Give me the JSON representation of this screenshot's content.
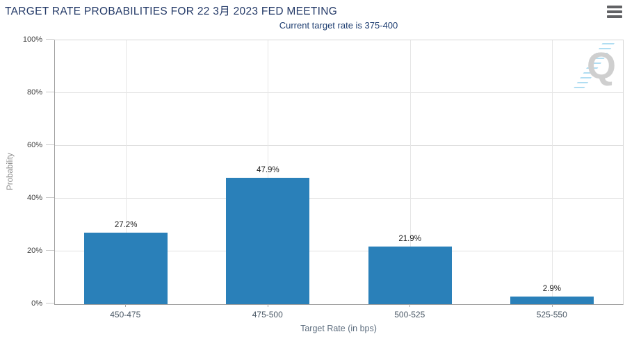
{
  "header": {
    "title": "TARGET RATE PROBABILITIES FOR 22 3月 2023 FED MEETING",
    "subtitle": "Current target rate is 375-400"
  },
  "watermark": {
    "letter": "Q"
  },
  "colors": {
    "bar": "#2a80b9",
    "title_text": "#243a68",
    "subtitle_text": "#1c3c70",
    "axis_line": "#a0a0a0",
    "gridline": "#e0e0e0"
  },
  "chart_data": {
    "type": "bar",
    "title": "TARGET RATE PROBABILITIES FOR 22 3月 2023 FED MEETING",
    "subtitle": "Current target rate is 375-400",
    "categories": [
      "450-475",
      "475-500",
      "500-525",
      "525-550"
    ],
    "values": [
      27.2,
      47.9,
      21.9,
      2.9
    ],
    "value_labels": [
      "27.2%",
      "47.9%",
      "21.9%",
      "2.9%"
    ],
    "xlabel": "Target Rate (in bps)",
    "ylabel": "Probability",
    "ylim": [
      0,
      100
    ],
    "yticks": [
      0,
      20,
      40,
      60,
      80,
      100
    ],
    "ytick_labels": [
      "0%",
      "20%",
      "40%",
      "60%",
      "80%",
      "100%"
    ],
    "grid": true,
    "legend": false,
    "bar_color": "#2a80b9"
  }
}
